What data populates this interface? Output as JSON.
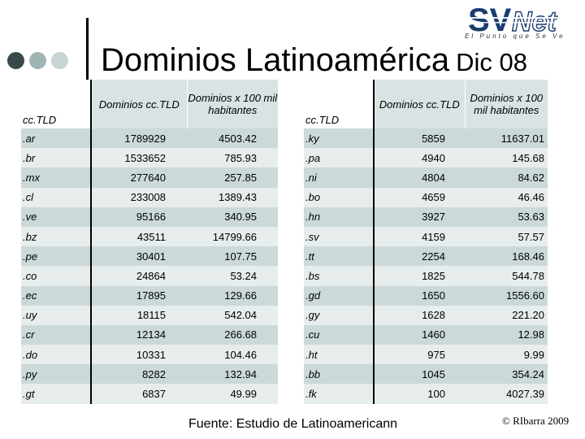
{
  "title": {
    "main": "Dominios Latinoamérica",
    "date": "Dic 08"
  },
  "logo": {
    "text": "SVNet",
    "tagline": "El Punto que Se Ve"
  },
  "left_table": {
    "headers": [
      "cc.TLD",
      "Dominios cc.TLD",
      "Dominios x 100 mil habitantes"
    ],
    "rows": [
      [
        ".ar",
        "1789929",
        "4503.42"
      ],
      [
        ".br",
        "1533652",
        "785.93"
      ],
      [
        ".mx",
        "277640",
        "257.85"
      ],
      [
        ".cl",
        "233008",
        "1389.43"
      ],
      [
        ".ve",
        "95166",
        "340.95"
      ],
      [
        ".bz",
        "43511",
        "14799.66"
      ],
      [
        ".pe",
        "30401",
        "107.75"
      ],
      [
        ".co",
        "24864",
        "53.24"
      ],
      [
        ".ec",
        "17895",
        "129.66"
      ],
      [
        ".uy",
        "18115",
        "542.04"
      ],
      [
        ".cr",
        "12134",
        "266.68"
      ],
      [
        ".do",
        "10331",
        "104.46"
      ],
      [
        ".py",
        "8282",
        "132.94"
      ],
      [
        ".gt",
        "6837",
        "49.99"
      ]
    ]
  },
  "right_table": {
    "headers": [
      "cc.TLD",
      "Dominios cc.TLD",
      "Dominios x 100 mil habitantes"
    ],
    "rows": [
      [
        ".ky",
        "5859",
        "11637.01"
      ],
      [
        ".pa",
        "4940",
        "145.68"
      ],
      [
        ".ni",
        "4804",
        "84.62"
      ],
      [
        ".bo",
        "4659",
        "46.46"
      ],
      [
        ".hn",
        "3927",
        "53.63"
      ],
      [
        ".sv",
        "4159",
        "57.57"
      ],
      [
        ".tt",
        "2254",
        "168.46"
      ],
      [
        ".bs",
        "1825",
        "544.78"
      ],
      [
        ".gd",
        "1650",
        "1556.60"
      ],
      [
        ".gy",
        "1628",
        "221.20"
      ],
      [
        ".cu",
        "1460",
        "12.98"
      ],
      [
        ".ht",
        "975",
        "9.99"
      ],
      [
        ".bb",
        "1045",
        "354.24"
      ],
      [
        ".fk",
        "100",
        "4027.39"
      ]
    ]
  },
  "footer": {
    "source": "Fuente: Estudio de Latinoamericann",
    "copyright": "© RIbarra 2009"
  },
  "colors": {
    "row_dark": "#ccd9d9",
    "row_light": "#e7eded",
    "header": "#d9e3e3",
    "logo_blue": "#1a3c6e"
  }
}
